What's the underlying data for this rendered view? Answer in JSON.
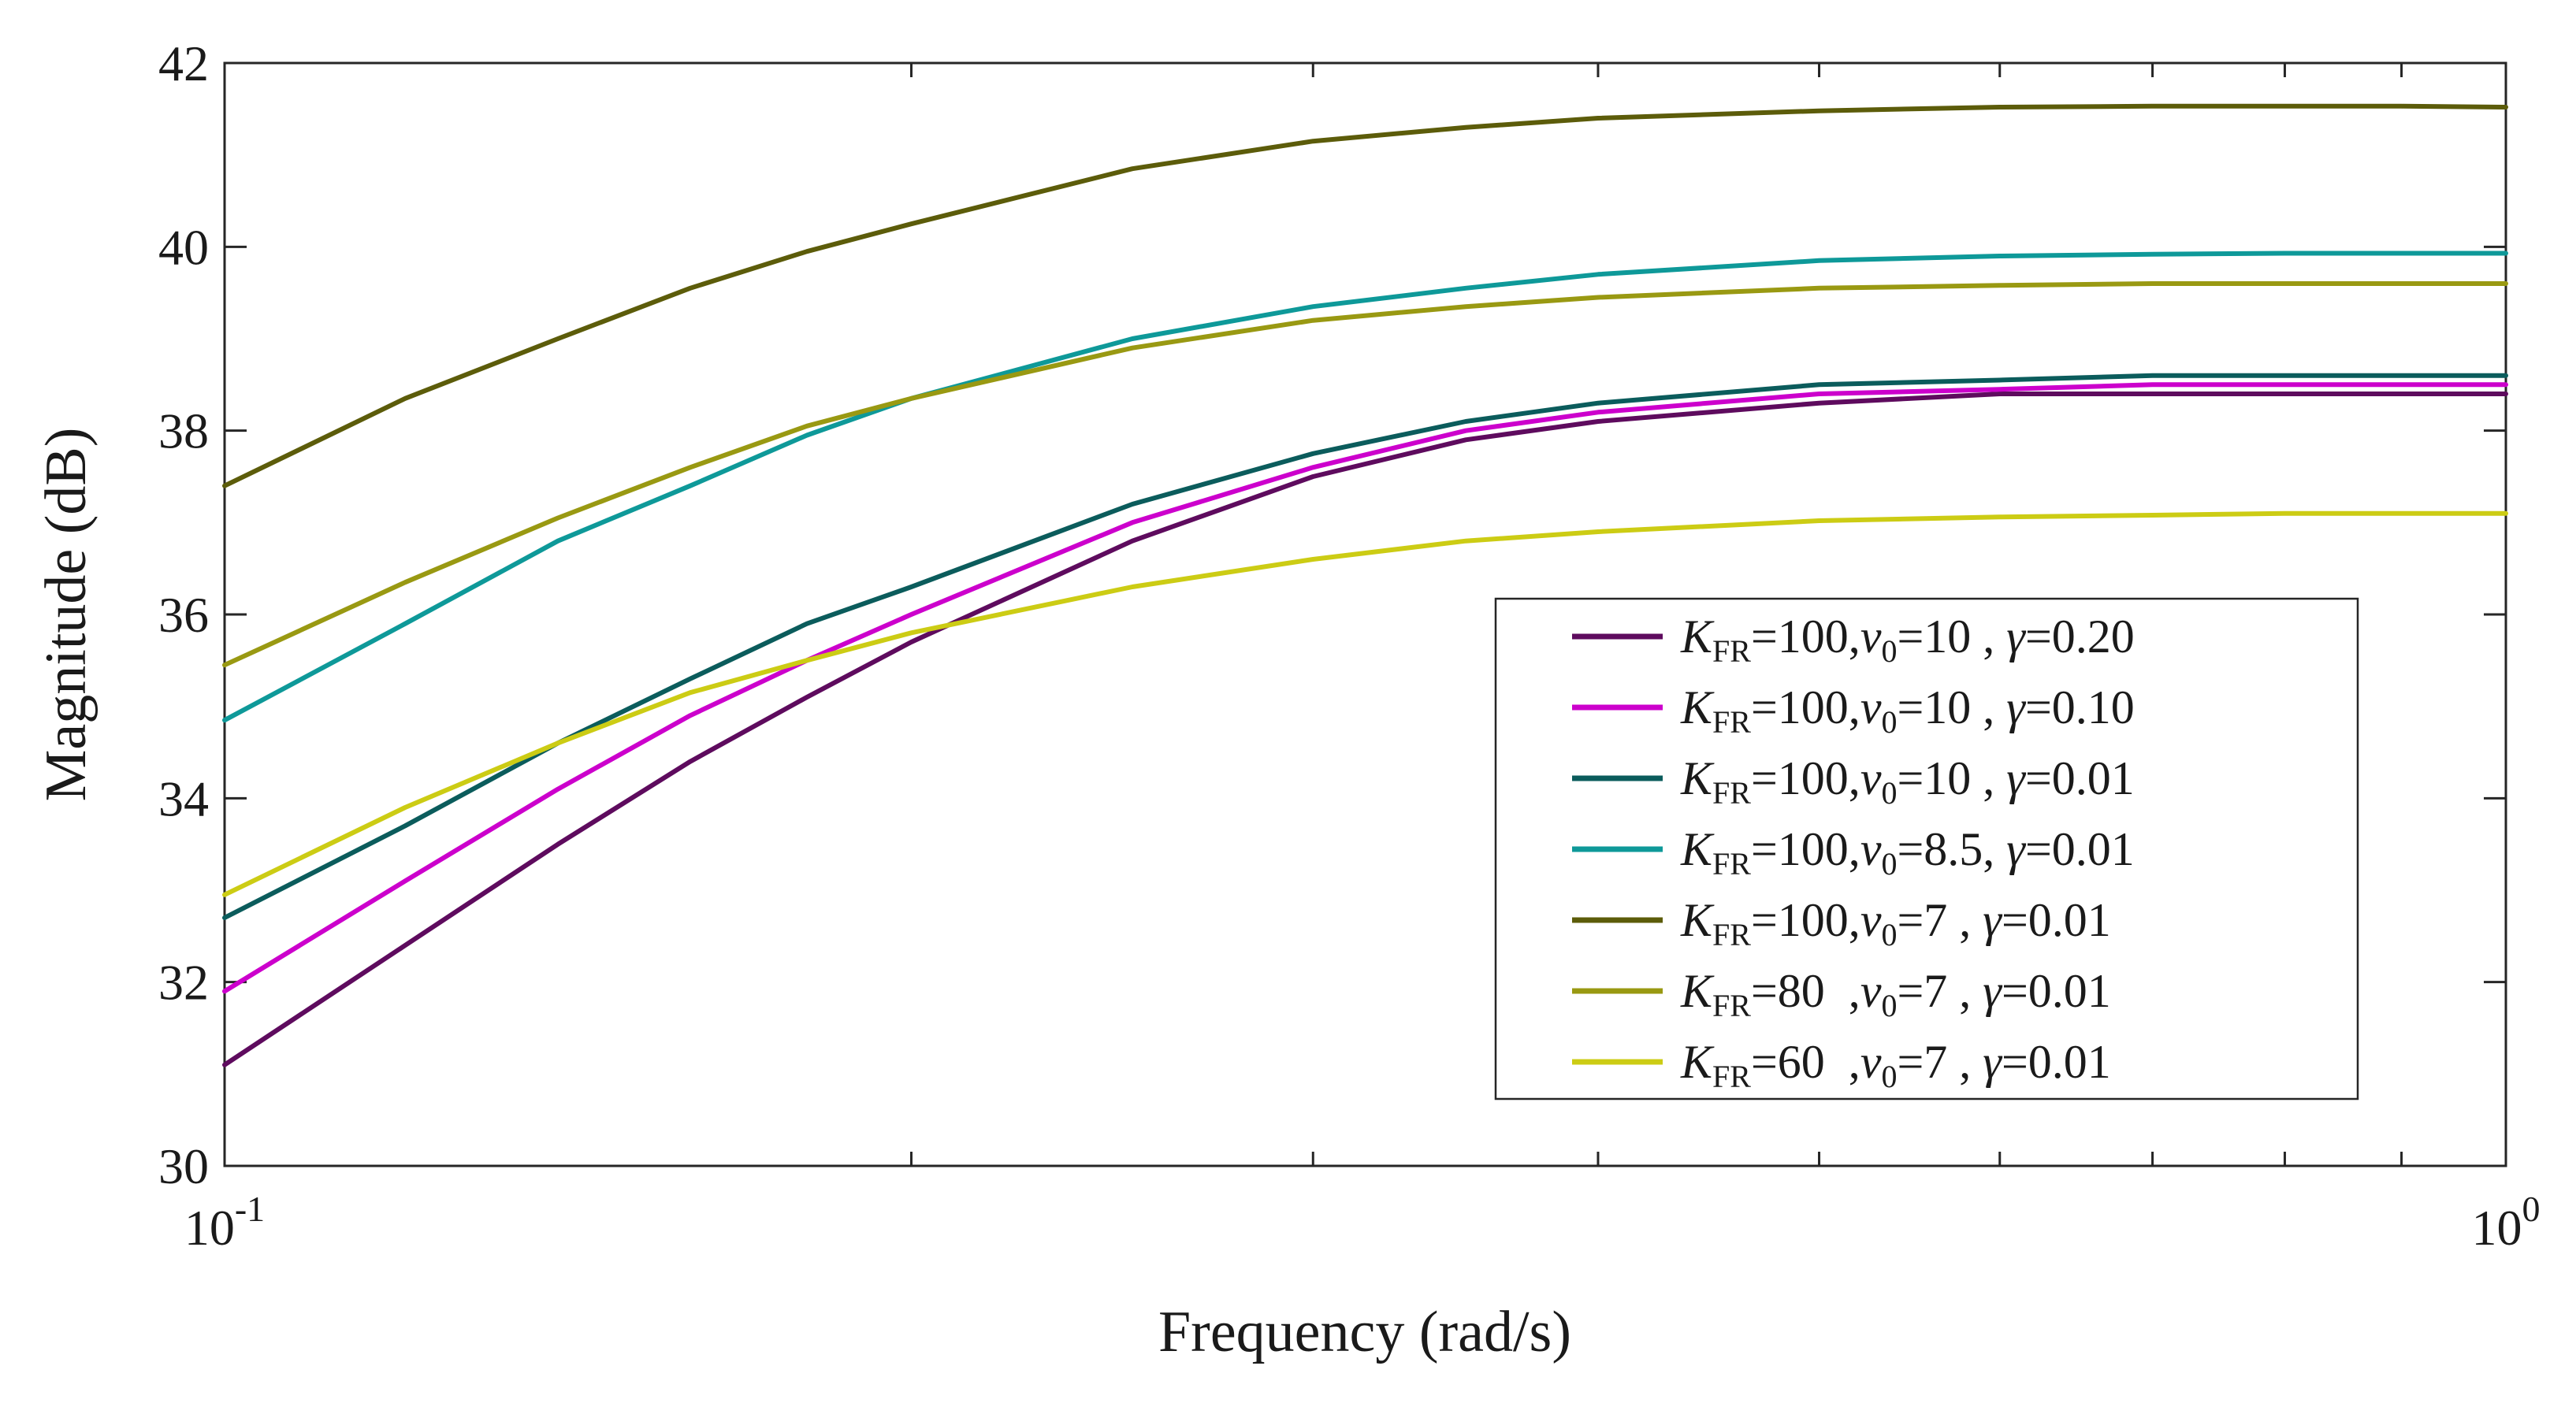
{
  "chart_data": {
    "type": "line",
    "title": "",
    "xlabel": "Frequency (rad/s)",
    "ylabel": "Magnitude (dB)",
    "xscale": "log",
    "xlim": [
      0.1,
      1
    ],
    "ylim": [
      30,
      42
    ],
    "grid": false,
    "legend_position": "bottom-right",
    "x_ticks": [
      {
        "value": 0.1,
        "base": "10",
        "exp": "-1"
      },
      {
        "value": 1,
        "base": "10",
        "exp": "0"
      }
    ],
    "y_ticks": [
      {
        "value": 30,
        "label": "30"
      },
      {
        "value": 32,
        "label": "32"
      },
      {
        "value": 34,
        "label": "34"
      },
      {
        "value": 36,
        "label": "36"
      },
      {
        "value": 38,
        "label": "38"
      },
      {
        "value": 40,
        "label": "40"
      },
      {
        "value": 42,
        "label": "42"
      }
    ],
    "x": [
      0.1,
      0.12,
      0.14,
      0.16,
      0.18,
      0.2,
      0.25,
      0.3,
      0.35,
      0.4,
      0.5,
      0.6,
      0.7,
      0.8,
      0.9,
      1.0
    ],
    "series": [
      {
        "name": "KFR=100,v0=10 , γ=0.20",
        "legend": {
          "k": "K",
          "ksub": "FR",
          "kval": "=100,",
          "v": "v",
          "vsub": "0",
          "vval": "=10 , ",
          "g": "γ",
          "gval": "=0.20"
        },
        "color": "#5E0B5E",
        "values": [
          31.1,
          32.4,
          33.5,
          34.4,
          35.1,
          35.7,
          36.8,
          37.5,
          37.9,
          38.1,
          38.3,
          38.4,
          38.4,
          38.4,
          38.4,
          38.4
        ]
      },
      {
        "name": "KFR=100,v0=10 , γ=0.10",
        "legend": {
          "k": "K",
          "ksub": "FR",
          "kval": "=100,",
          "v": "v",
          "vsub": "0",
          "vval": "=10 , ",
          "g": "γ",
          "gval": "=0.10"
        },
        "color": "#CC00CC",
        "values": [
          31.9,
          33.1,
          34.1,
          34.9,
          35.5,
          36.0,
          37.0,
          37.6,
          38.0,
          38.2,
          38.4,
          38.45,
          38.5,
          38.5,
          38.5,
          38.5
        ]
      },
      {
        "name": "KFR=100,v0=10 , γ=0.01",
        "legend": {
          "k": "K",
          "ksub": "FR",
          "kval": "=100,",
          "v": "v",
          "vsub": "0",
          "vval": "=10 , ",
          "g": "γ",
          "gval": "=0.01"
        },
        "color": "#0B5C5C",
        "values": [
          32.7,
          33.7,
          34.6,
          35.3,
          35.9,
          36.3,
          37.2,
          37.75,
          38.1,
          38.3,
          38.5,
          38.55,
          38.6,
          38.6,
          38.6,
          38.6
        ]
      },
      {
        "name": "KFR=100,v0=8.5, γ=0.01",
        "legend": {
          "k": "K",
          "ksub": "FR",
          "kval": "=100,",
          "v": "v",
          "vsub": "0",
          "vval": "=8.5, ",
          "g": "γ",
          "gval": "=0.01"
        },
        "color": "#0E9999",
        "values": [
          34.85,
          35.9,
          36.8,
          37.4,
          37.95,
          38.35,
          39.0,
          39.35,
          39.55,
          39.7,
          39.85,
          39.9,
          39.92,
          39.93,
          39.93,
          39.93
        ]
      },
      {
        "name": "KFR=100,v0=7 , γ=0.01",
        "legend": {
          "k": "K",
          "ksub": "FR",
          "kval": "=100,",
          "v": "v",
          "vsub": "0",
          "vval": "=7 , ",
          "g": "γ",
          "gval": "=0.01"
        },
        "color": "#5C5C0A",
        "values": [
          37.4,
          38.35,
          39.0,
          39.55,
          39.95,
          40.25,
          40.85,
          41.15,
          41.3,
          41.4,
          41.48,
          41.52,
          41.53,
          41.53,
          41.53,
          41.52
        ]
      },
      {
        "name": "KFR=80 ,v0=7 , γ=0.01",
        "legend": {
          "k": "K",
          "ksub": "FR",
          "kval": "=80  ,",
          "v": "v",
          "vsub": "0",
          "vval": "=7 , ",
          "g": "γ",
          "gval": "=0.01"
        },
        "color": "#999912",
        "values": [
          35.45,
          36.35,
          37.05,
          37.6,
          38.05,
          38.35,
          38.9,
          39.2,
          39.35,
          39.45,
          39.55,
          39.58,
          39.6,
          39.6,
          39.6,
          39.6
        ]
      },
      {
        "name": "KFR=60 ,v0=7 , γ=0.01",
        "legend": {
          "k": "K",
          "ksub": "FR",
          "kval": "=60  ,",
          "v": "v",
          "vsub": "0",
          "vval": "=7 , ",
          "g": "γ",
          "gval": "=0.01"
        },
        "color": "#CCCC14",
        "values": [
          32.95,
          33.9,
          34.6,
          35.15,
          35.5,
          35.8,
          36.3,
          36.6,
          36.8,
          36.9,
          37.02,
          37.06,
          37.08,
          37.1,
          37.1,
          37.1
        ]
      }
    ]
  }
}
